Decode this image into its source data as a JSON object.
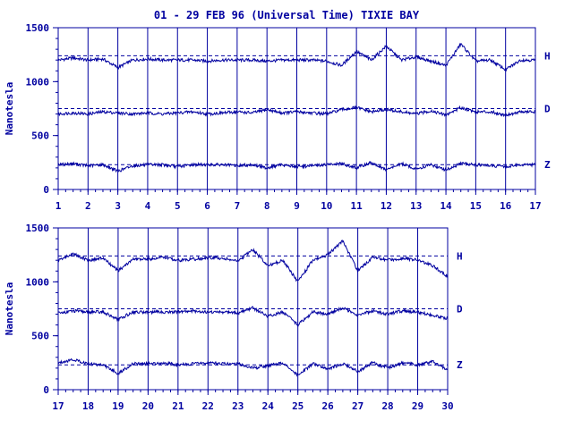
{
  "title": "01 - 29 FEB 96 (Universal Time) TIXIE BAY",
  "colors": {
    "ink": "#0000a0",
    "background": "#ffffff"
  },
  "chart_data": [
    {
      "type": "line",
      "title": "01 - 29 FEB 96 (Universal Time) TIXIE BAY",
      "ylabel": "Nanotesla",
      "xlabel": "",
      "xlim": [
        1,
        17
      ],
      "ylim": [
        0,
        1500
      ],
      "y_ticks": [
        0,
        500,
        1000,
        1500
      ],
      "x_ticks": [
        1,
        2,
        3,
        4,
        5,
        6,
        7,
        8,
        9,
        10,
        11,
        12,
        13,
        14,
        15,
        16,
        17
      ],
      "grid": "vertical lines at each day",
      "series": [
        {
          "name": "H",
          "baseline": 1240,
          "x": [
            1,
            1.5,
            2,
            2.5,
            3,
            3.5,
            4,
            4.5,
            5,
            5.5,
            6,
            6.5,
            7,
            7.5,
            8,
            8.5,
            9,
            9.5,
            10,
            10.5,
            11,
            11.5,
            12,
            12.5,
            13,
            13.5,
            14,
            14.5,
            15,
            15.5,
            16,
            16.5,
            17
          ],
          "y": [
            1200,
            1220,
            1200,
            1210,
            1130,
            1200,
            1210,
            1200,
            1200,
            1200,
            1190,
            1200,
            1200,
            1200,
            1190,
            1200,
            1200,
            1200,
            1190,
            1150,
            1280,
            1200,
            1330,
            1200,
            1230,
            1190,
            1150,
            1350,
            1190,
            1200,
            1110,
            1200,
            1200
          ]
        },
        {
          "name": "D",
          "baseline": 750,
          "x": [
            1,
            1.5,
            2,
            2.5,
            3,
            3.5,
            4,
            4.5,
            5,
            5.5,
            6,
            6.5,
            7,
            7.5,
            8,
            8.5,
            9,
            9.5,
            10,
            10.5,
            11,
            11.5,
            12,
            12.5,
            13,
            13.5,
            14,
            14.5,
            15,
            15.5,
            16,
            16.5,
            17
          ],
          "y": [
            700,
            710,
            700,
            720,
            710,
            700,
            710,
            700,
            710,
            720,
            700,
            710,
            720,
            710,
            740,
            710,
            720,
            710,
            700,
            740,
            760,
            720,
            740,
            720,
            700,
            730,
            690,
            760,
            720,
            720,
            690,
            720,
            720
          ]
        },
        {
          "name": "Z",
          "baseline": 230,
          "x": [
            1,
            1.5,
            2,
            2.5,
            3,
            3.5,
            4,
            4.5,
            5,
            5.5,
            6,
            6.5,
            7,
            7.5,
            8,
            8.5,
            9,
            9.5,
            10,
            10.5,
            11,
            11.5,
            12,
            12.5,
            13,
            13.5,
            14,
            14.5,
            15,
            15.5,
            16,
            16.5,
            17
          ],
          "y": [
            230,
            240,
            220,
            230,
            170,
            220,
            230,
            230,
            210,
            230,
            230,
            230,
            220,
            230,
            200,
            230,
            210,
            220,
            230,
            240,
            200,
            250,
            180,
            240,
            190,
            230,
            180,
            240,
            230,
            220,
            210,
            230,
            230
          ]
        }
      ]
    },
    {
      "type": "line",
      "title": "",
      "ylabel": "Nanotesla",
      "xlabel": "",
      "xlim": [
        17,
        30
      ],
      "ylim": [
        0,
        1500
      ],
      "y_ticks": [
        0,
        500,
        1000,
        1500
      ],
      "x_ticks": [
        17,
        18,
        19,
        20,
        21,
        22,
        23,
        24,
        25,
        26,
        27,
        28,
        29,
        30
      ],
      "grid": "vertical lines at each day",
      "series": [
        {
          "name": "H",
          "baseline": 1240,
          "x": [
            17,
            17.5,
            18,
            18.5,
            19,
            19.5,
            20,
            20.5,
            21,
            21.5,
            22,
            22.5,
            23,
            23.5,
            24,
            24.5,
            25,
            25.5,
            26,
            26.5,
            27,
            27.5,
            28,
            28.5,
            29,
            29.5,
            30
          ],
          "y": [
            1200,
            1260,
            1200,
            1220,
            1100,
            1210,
            1210,
            1230,
            1200,
            1210,
            1220,
            1220,
            1190,
            1300,
            1150,
            1200,
            1000,
            1200,
            1250,
            1380,
            1100,
            1230,
            1200,
            1220,
            1200,
            1150,
            1050
          ]
        },
        {
          "name": "D",
          "baseline": 750,
          "x": [
            17,
            17.5,
            18,
            18.5,
            19,
            19.5,
            20,
            20.5,
            21,
            21.5,
            22,
            22.5,
            23,
            23.5,
            24,
            24.5,
            25,
            25.5,
            26,
            26.5,
            27,
            27.5,
            28,
            28.5,
            29,
            29.5,
            30
          ],
          "y": [
            710,
            730,
            720,
            720,
            650,
            720,
            720,
            720,
            720,
            730,
            720,
            720,
            710,
            760,
            680,
            720,
            600,
            720,
            700,
            760,
            690,
            730,
            700,
            730,
            720,
            690,
            660
          ]
        },
        {
          "name": "Z",
          "baseline": 230,
          "x": [
            17,
            17.5,
            18,
            18.5,
            19,
            19.5,
            20,
            20.5,
            21,
            21.5,
            22,
            22.5,
            23,
            23.5,
            24,
            24.5,
            25,
            25.5,
            26,
            26.5,
            27,
            27.5,
            28,
            28.5,
            29,
            29.5,
            30
          ],
          "y": [
            250,
            280,
            240,
            230,
            150,
            240,
            240,
            250,
            230,
            240,
            250,
            240,
            240,
            200,
            220,
            250,
            130,
            240,
            190,
            240,
            170,
            250,
            200,
            250,
            230,
            260,
            180
          ]
        }
      ]
    }
  ]
}
